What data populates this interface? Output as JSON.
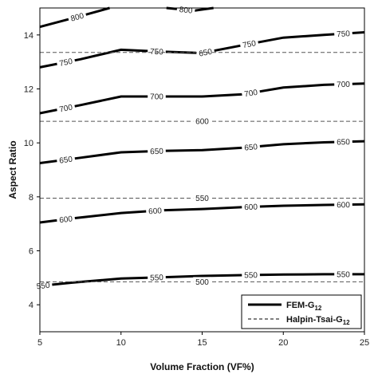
{
  "chart_data": {
    "type": "line",
    "title": "",
    "xlabel": "Volume Fraction (VF%)",
    "ylabel": "Aspect Ratio",
    "xlim": [
      5,
      25
    ],
    "ylim": [
      3,
      15
    ],
    "xticks": [
      5,
      10,
      15,
      20,
      25
    ],
    "yticks": [
      4,
      6,
      8,
      10,
      12,
      14
    ],
    "xtick_labels": [
      "5",
      "10",
      "15",
      "20",
      "25"
    ],
    "ytick_labels": [
      "4",
      "6",
      "8",
      "10",
      "12",
      "14"
    ],
    "grid": false,
    "legend_position": "bottom-right",
    "legend": {
      "fem_prefix": "FEM-G",
      "fem_sub": "12",
      "halpin_prefix": "Halpin-Tsai-G",
      "halpin_sub": "12"
    },
    "series": [
      {
        "group": "fem",
        "level": "550",
        "x": [
          5,
          7,
          10,
          12.5,
          15,
          17.5,
          20,
          22.5,
          25
        ],
        "y": [
          4.7,
          4.82,
          4.97,
          5.02,
          5.07,
          5.1,
          5.12,
          5.13,
          5.13
        ],
        "labels": [
          {
            "text": "550",
            "x": 5.2
          },
          {
            "text": "550",
            "x": 12.2
          },
          {
            "text": "550",
            "x": 18.0
          },
          {
            "text": "550",
            "x": 23.7
          }
        ]
      },
      {
        "group": "fem",
        "level": "600",
        "x": [
          5,
          7,
          10,
          12.5,
          15,
          17.5,
          20,
          22.5,
          25
        ],
        "y": [
          7.05,
          7.2,
          7.4,
          7.5,
          7.55,
          7.62,
          7.67,
          7.7,
          7.72
        ],
        "labels": [
          {
            "text": "600",
            "x": 6.6
          },
          {
            "text": "600",
            "x": 12.1
          },
          {
            "text": "600",
            "x": 18.0
          },
          {
            "text": "600",
            "x": 23.7
          }
        ]
      },
      {
        "group": "fem",
        "level": "650",
        "x": [
          5,
          7.5,
          10,
          12.5,
          15,
          17.5,
          20,
          22.5,
          25
        ],
        "y": [
          9.25,
          9.45,
          9.65,
          9.7,
          9.73,
          9.82,
          9.95,
          10.02,
          10.06
        ],
        "labels": [
          {
            "text": "650",
            "x": 6.6
          },
          {
            "text": "650",
            "x": 12.2
          },
          {
            "text": "650",
            "x": 18.0
          },
          {
            "text": "650",
            "x": 23.7
          }
        ]
      },
      {
        "group": "fem",
        "level": "700",
        "x": [
          5,
          7.5,
          10,
          12.5,
          15,
          17.5,
          20,
          22.5,
          25
        ],
        "y": [
          11.1,
          11.4,
          11.72,
          11.72,
          11.72,
          11.8,
          12.05,
          12.15,
          12.2
        ],
        "labels": [
          {
            "text": "700",
            "x": 6.6
          },
          {
            "text": "700",
            "x": 12.2
          },
          {
            "text": "700",
            "x": 18.0
          },
          {
            "text": "700",
            "x": 23.7
          }
        ]
      },
      {
        "group": "fem",
        "level": "750",
        "x": [
          5,
          7.5,
          10,
          12.5,
          15,
          17.5,
          20,
          22.5,
          25
        ],
        "y": [
          12.8,
          13.1,
          13.45,
          13.38,
          13.33,
          13.62,
          13.9,
          14.0,
          14.1
        ],
        "labels": [
          {
            "text": "750",
            "x": 6.6
          },
          {
            "text": "750",
            "x": 12.2
          },
          {
            "text": "650",
            "x": 15.2
          },
          {
            "text": "750",
            "x": 17.9
          },
          {
            "text": "750",
            "x": 23.7
          }
        ]
      },
      {
        "group": "fem",
        "level": "800",
        "x": [
          5,
          7.5,
          9.3
        ],
        "y": [
          14.3,
          14.7,
          15.0
        ],
        "labels": [
          {
            "text": "800",
            "x": 7.3
          }
        ]
      },
      {
        "group": "fem",
        "level": "800",
        "x": [
          12.8,
          14.5,
          15.7
        ],
        "y": [
          15.0,
          14.9,
          15.0
        ],
        "labels": [
          {
            "text": "800",
            "x": 14.0
          }
        ]
      },
      {
        "group": "halpin",
        "level": "500",
        "x": [
          5,
          25
        ],
        "y": [
          4.85,
          4.85
        ],
        "labels": [
          {
            "text": "500",
            "x": 15.0
          }
        ]
      },
      {
        "group": "halpin",
        "level": "550",
        "x": [
          5,
          25
        ],
        "y": [
          7.95,
          7.95
        ],
        "labels": [
          {
            "text": "550",
            "x": 15.0
          }
        ]
      },
      {
        "group": "halpin",
        "level": "600",
        "x": [
          5,
          25
        ],
        "y": [
          10.8,
          10.8
        ],
        "labels": [
          {
            "text": "600",
            "x": 15.0
          }
        ]
      },
      {
        "group": "halpin",
        "level": "650",
        "x": [
          5,
          25
        ],
        "y": [
          13.35,
          13.35
        ],
        "labels": []
      }
    ]
  }
}
